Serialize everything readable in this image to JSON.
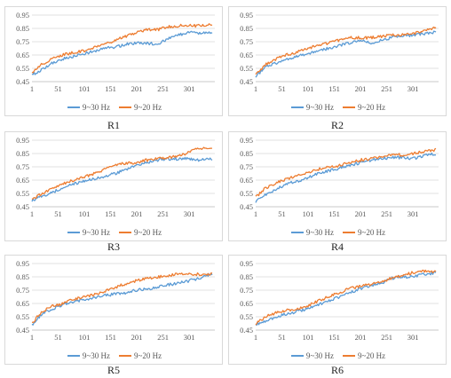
{
  "colors": {
    "series1": "#5b9bd5",
    "series2": "#ed7d31",
    "grid": "#d9d9d9"
  },
  "chart_data": [
    {
      "type": "line",
      "caption": "R1",
      "xticks": [
        "1",
        "51",
        "101",
        "151",
        "201",
        "251",
        "301"
      ],
      "yticks": [
        "0.45",
        "0.55",
        "0.65",
        "0.75",
        "0.85",
        "0.95"
      ],
      "xlim": [
        1,
        350
      ],
      "ylim": [
        0.45,
        0.95
      ],
      "grid": "horizontal",
      "legend": "bottom",
      "x": [
        1,
        20,
        40,
        60,
        80,
        100,
        120,
        140,
        160,
        180,
        200,
        220,
        240,
        260,
        280,
        300,
        320,
        345
      ],
      "series": [
        {
          "name": "9~30 Hz",
          "values": [
            0.5,
            0.54,
            0.59,
            0.62,
            0.64,
            0.66,
            0.68,
            0.7,
            0.71,
            0.73,
            0.74,
            0.74,
            0.73,
            0.77,
            0.8,
            0.82,
            0.81,
            0.82
          ]
        },
        {
          "name": "9~20 Hz",
          "values": [
            0.51,
            0.58,
            0.62,
            0.65,
            0.67,
            0.68,
            0.71,
            0.73,
            0.76,
            0.79,
            0.82,
            0.84,
            0.84,
            0.86,
            0.87,
            0.87,
            0.87,
            0.88
          ]
        }
      ]
    },
    {
      "type": "line",
      "caption": "R2",
      "xticks": [
        "1",
        "51",
        "101",
        "151",
        "201",
        "251",
        "301"
      ],
      "yticks": [
        "0.45",
        "0.55",
        "0.65",
        "0.75",
        "0.85",
        "0.95"
      ],
      "xlim": [
        1,
        350
      ],
      "ylim": [
        0.45,
        0.95
      ],
      "grid": "horizontal",
      "legend": "bottom",
      "x": [
        1,
        20,
        40,
        60,
        80,
        100,
        120,
        140,
        160,
        180,
        200,
        220,
        240,
        260,
        280,
        300,
        320,
        345
      ],
      "series": [
        {
          "name": "9~30 Hz",
          "values": [
            0.49,
            0.56,
            0.59,
            0.62,
            0.64,
            0.66,
            0.68,
            0.7,
            0.72,
            0.74,
            0.76,
            0.74,
            0.76,
            0.78,
            0.79,
            0.8,
            0.81,
            0.82
          ]
        },
        {
          "name": "9~20 Hz",
          "values": [
            0.5,
            0.58,
            0.62,
            0.65,
            0.67,
            0.7,
            0.72,
            0.74,
            0.76,
            0.78,
            0.78,
            0.78,
            0.79,
            0.8,
            0.8,
            0.81,
            0.83,
            0.86
          ]
        }
      ]
    },
    {
      "type": "line",
      "caption": "R3",
      "xticks": [
        "1",
        "51",
        "101",
        "151",
        "201",
        "251",
        "301"
      ],
      "yticks": [
        "0.45",
        "0.55",
        "0.65",
        "0.75",
        "0.85",
        "0.95"
      ],
      "xlim": [
        1,
        350
      ],
      "ylim": [
        0.45,
        0.95
      ],
      "grid": "horizontal",
      "legend": "bottom",
      "x": [
        1,
        20,
        40,
        60,
        80,
        100,
        120,
        140,
        160,
        180,
        200,
        220,
        240,
        260,
        280,
        300,
        320,
        345
      ],
      "series": [
        {
          "name": "9~30 Hz",
          "values": [
            0.5,
            0.53,
            0.56,
            0.59,
            0.62,
            0.64,
            0.66,
            0.68,
            0.7,
            0.73,
            0.76,
            0.78,
            0.8,
            0.81,
            0.81,
            0.81,
            0.8,
            0.81
          ]
        },
        {
          "name": "9~20 Hz",
          "values": [
            0.5,
            0.55,
            0.59,
            0.62,
            0.65,
            0.67,
            0.7,
            0.73,
            0.76,
            0.78,
            0.78,
            0.8,
            0.81,
            0.82,
            0.83,
            0.86,
            0.89,
            0.88
          ]
        }
      ]
    },
    {
      "type": "line",
      "caption": "R4",
      "xticks": [
        "1",
        "51",
        "101",
        "151",
        "201",
        "251",
        "301"
      ],
      "yticks": [
        "0.45",
        "0.55",
        "0.65",
        "0.75",
        "0.85",
        "0.95"
      ],
      "xlim": [
        1,
        350
      ],
      "ylim": [
        0.45,
        0.95
      ],
      "grid": "horizontal",
      "legend": "bottom",
      "x": [
        1,
        20,
        40,
        60,
        80,
        100,
        120,
        140,
        160,
        180,
        200,
        220,
        240,
        260,
        280,
        300,
        320,
        345
      ],
      "series": [
        {
          "name": "9~30 Hz",
          "values": [
            0.49,
            0.54,
            0.58,
            0.62,
            0.64,
            0.67,
            0.7,
            0.72,
            0.74,
            0.76,
            0.78,
            0.8,
            0.81,
            0.82,
            0.82,
            0.81,
            0.83,
            0.85
          ]
        },
        {
          "name": "9~20 Hz",
          "values": [
            0.52,
            0.59,
            0.63,
            0.66,
            0.68,
            0.71,
            0.73,
            0.75,
            0.76,
            0.78,
            0.8,
            0.81,
            0.83,
            0.84,
            0.84,
            0.85,
            0.86,
            0.88
          ]
        }
      ]
    },
    {
      "type": "line",
      "caption": "R5",
      "xticks": [
        "1",
        "51",
        "101",
        "151",
        "201",
        "251",
        "301"
      ],
      "yticks": [
        "0.45",
        "0.55",
        "0.65",
        "0.75",
        "0.85",
        "0.95"
      ],
      "xlim": [
        1,
        350
      ],
      "ylim": [
        0.45,
        0.95
      ],
      "grid": "horizontal",
      "legend": "bottom",
      "x": [
        1,
        20,
        40,
        60,
        80,
        100,
        120,
        140,
        160,
        180,
        200,
        220,
        240,
        260,
        280,
        300,
        320,
        345
      ],
      "series": [
        {
          "name": "9~30 Hz",
          "values": [
            0.49,
            0.57,
            0.61,
            0.64,
            0.66,
            0.68,
            0.69,
            0.71,
            0.72,
            0.73,
            0.75,
            0.76,
            0.77,
            0.79,
            0.8,
            0.82,
            0.84,
            0.87
          ]
        },
        {
          "name": "9~20 Hz",
          "values": [
            0.5,
            0.59,
            0.63,
            0.65,
            0.68,
            0.7,
            0.72,
            0.74,
            0.77,
            0.8,
            0.82,
            0.84,
            0.85,
            0.86,
            0.87,
            0.87,
            0.87,
            0.87
          ]
        }
      ]
    },
    {
      "type": "line",
      "caption": "R6",
      "xticks": [
        "1",
        "51",
        "101",
        "151",
        "201",
        "251",
        "301"
      ],
      "yticks": [
        "0.45",
        "0.55",
        "0.65",
        "0.75",
        "0.85",
        "0.95"
      ],
      "xlim": [
        1,
        350
      ],
      "ylim": [
        0.45,
        0.95
      ],
      "grid": "horizontal",
      "legend": "bottom",
      "x": [
        1,
        20,
        40,
        60,
        80,
        100,
        120,
        140,
        160,
        180,
        200,
        220,
        240,
        260,
        280,
        300,
        320,
        345
      ],
      "series": [
        {
          "name": "9~30 Hz",
          "values": [
            0.49,
            0.52,
            0.55,
            0.57,
            0.59,
            0.61,
            0.64,
            0.67,
            0.7,
            0.73,
            0.76,
            0.78,
            0.8,
            0.84,
            0.85,
            0.85,
            0.87,
            0.88
          ]
        },
        {
          "name": "9~20 Hz",
          "values": [
            0.5,
            0.55,
            0.58,
            0.6,
            0.61,
            0.63,
            0.67,
            0.7,
            0.73,
            0.76,
            0.78,
            0.79,
            0.81,
            0.84,
            0.86,
            0.88,
            0.89,
            0.89
          ]
        }
      ]
    }
  ]
}
